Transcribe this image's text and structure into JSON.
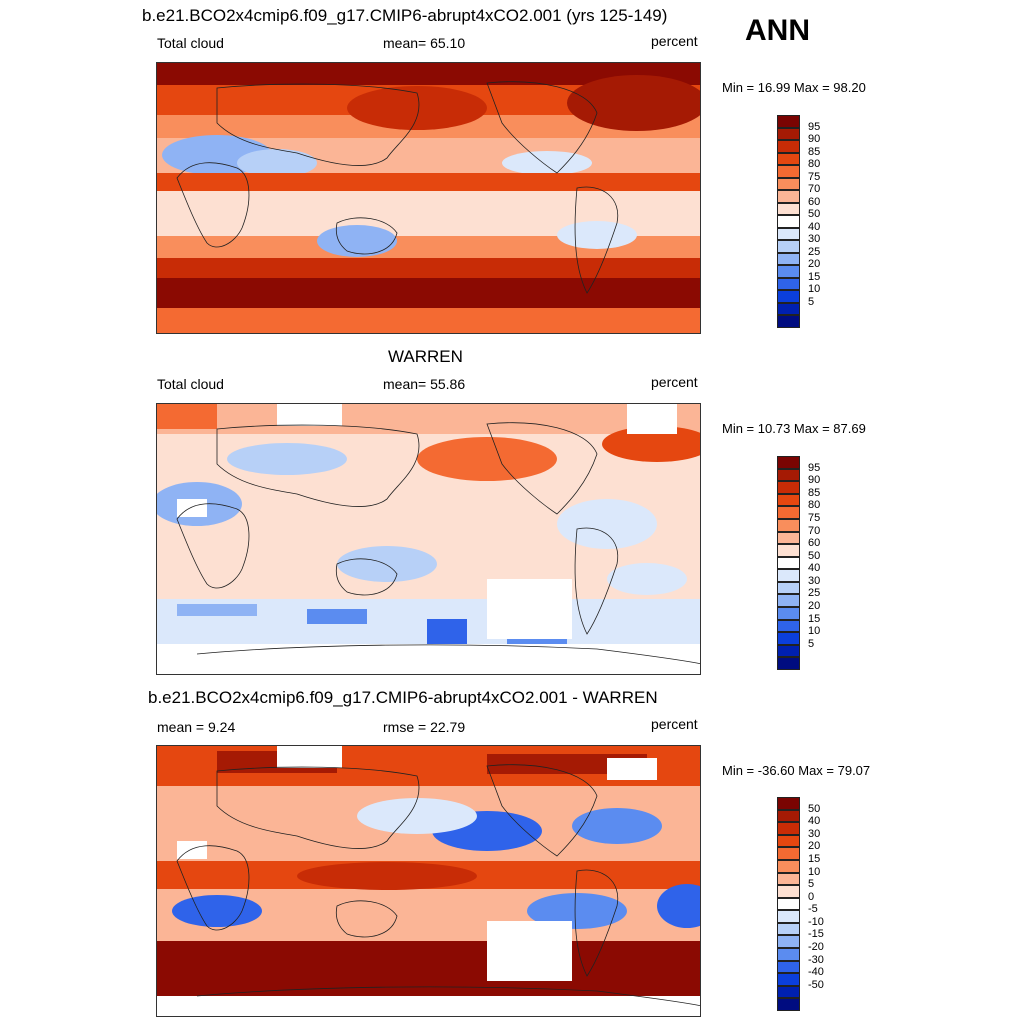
{
  "season": "ANN",
  "panels": [
    {
      "heading": "b.e21.BCO2x4cmip6.f09_g17.CMIP6-abrupt4xCO2.001 (yrs 125-149)",
      "left_label": "Total cloud",
      "center_label": "mean=  65.10",
      "right_label": "percent",
      "minmax": "Min =  16.99 Max =  98.20",
      "scale": "abs"
    },
    {
      "heading": "WARREN",
      "left_label": "Total cloud",
      "center_label": "mean=  55.86",
      "right_label": "percent",
      "minmax": "Min =  10.73 Max =  87.69",
      "scale": "abs"
    },
    {
      "heading": "b.e21.BCO2x4cmip6.f09_g17.CMIP6-abrupt4xCO2.001 - WARREN",
      "left_label": "mean =   9.24",
      "center_label": "rmse =  22.79",
      "right_label": "percent",
      "minmax": "Min = -36.60 Max =  79.07",
      "scale": "diff"
    }
  ],
  "colorbars": {
    "abs": {
      "ticks": [
        "95",
        "90",
        "85",
        "80",
        "75",
        "70",
        "60",
        "50",
        "40",
        "30",
        "25",
        "20",
        "15",
        "10",
        "5"
      ],
      "colors": [
        "#7a0402",
        "#a51a04",
        "#c82c06",
        "#e54710",
        "#f46a32",
        "#f98e5c",
        "#fbb596",
        "#fde0d2",
        "#ffffff",
        "#dbe8fb",
        "#b7d0f7",
        "#8fb3f4",
        "#5b8cf0",
        "#2f63ea",
        "#0b3fdc",
        "#0020b0",
        "#000c80"
      ]
    },
    "diff": {
      "ticks": [
        "50",
        "40",
        "30",
        "20",
        "15",
        "10",
        "5",
        "0",
        "-5",
        "-10",
        "-15",
        "-20",
        "-30",
        "-40",
        "-50"
      ],
      "colors": [
        "#7a0402",
        "#a51a04",
        "#c82c06",
        "#e54710",
        "#f46a32",
        "#f98e5c",
        "#fbb596",
        "#fde0d2",
        "#ffffff",
        "#dbe8fb",
        "#b7d0f7",
        "#8fb3f4",
        "#5b8cf0",
        "#2f63ea",
        "#0b3fdc",
        "#0020b0",
        "#000c80"
      ]
    }
  },
  "field_colors": {
    "deep_red": "#8b0a02",
    "red": "#c82c06",
    "orange": "#f46a32",
    "salmon": "#fbb596",
    "pale": "#fde0d2",
    "white": "#ffffff",
    "light_blue": "#dbe8fb",
    "blue": "#8fb3f4",
    "mid_blue": "#2f63ea",
    "coast": "#222222"
  }
}
